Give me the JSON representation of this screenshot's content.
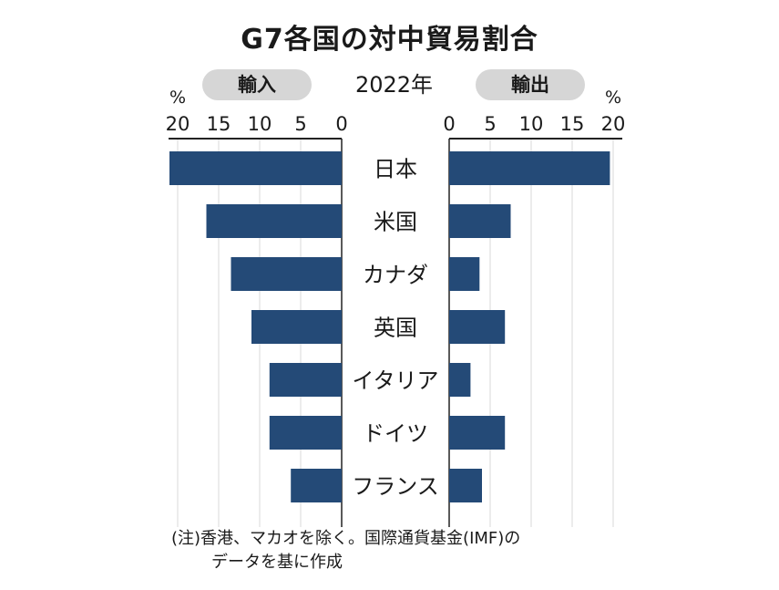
{
  "title": "G7各国の対中貿易割合",
  "year_label": "2022年",
  "note_line1": "(注)香港、マカオを除く。国際通貨基金(IMF)の",
  "note_line2": "データを基に作成",
  "colors": {
    "bar": "#244a77",
    "grid": "#d9d9d9",
    "pill": "#d6d6d6",
    "axis": "#222222"
  },
  "chart_data": {
    "type": "bar",
    "orientation": "horizontal-butterfly",
    "categories": [
      "日本",
      "米国",
      "カナダ",
      "英国",
      "イタリア",
      "ドイツ",
      "フランス"
    ],
    "series": [
      {
        "name": "輸入",
        "values": [
          21.0,
          16.5,
          13.5,
          11.0,
          8.8,
          8.8,
          6.2
        ]
      },
      {
        "name": "輸出",
        "values": [
          19.6,
          7.5,
          3.7,
          6.8,
          2.6,
          6.8,
          4.0
        ]
      }
    ],
    "unit": "%",
    "ticks": [
      0,
      5,
      10,
      15,
      20
    ],
    "xlim": [
      0,
      20
    ],
    "grid": true
  }
}
